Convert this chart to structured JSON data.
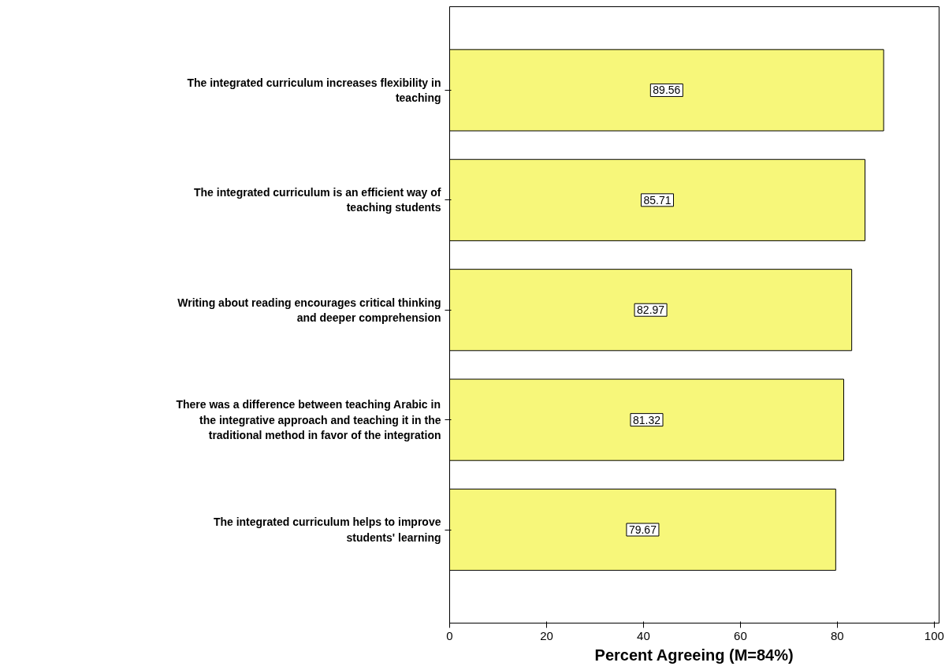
{
  "chart_data": {
    "type": "bar",
    "orientation": "horizontal",
    "xlabel": "Percent Agreeing (M=84%)",
    "categories": [
      "The integrated curriculum increases flexibility in teaching",
      "The integrated curriculum is an efficient way of teaching students",
      "Writing about reading encourages critical thinking and deeper comprehension",
      "There was a difference between teaching Arabic in the integrative approach and teaching it in the traditional method in favor of the integration",
      "The integrated curriculum helps to improve students' learning"
    ],
    "values": [
      89.56,
      85.71,
      82.97,
      81.32,
      79.67
    ],
    "color": "#f7f77a",
    "xlim": [
      0,
      101
    ],
    "xticks": [
      0,
      20,
      40,
      60,
      80,
      100
    ],
    "grid": false,
    "data_labels": true
  }
}
